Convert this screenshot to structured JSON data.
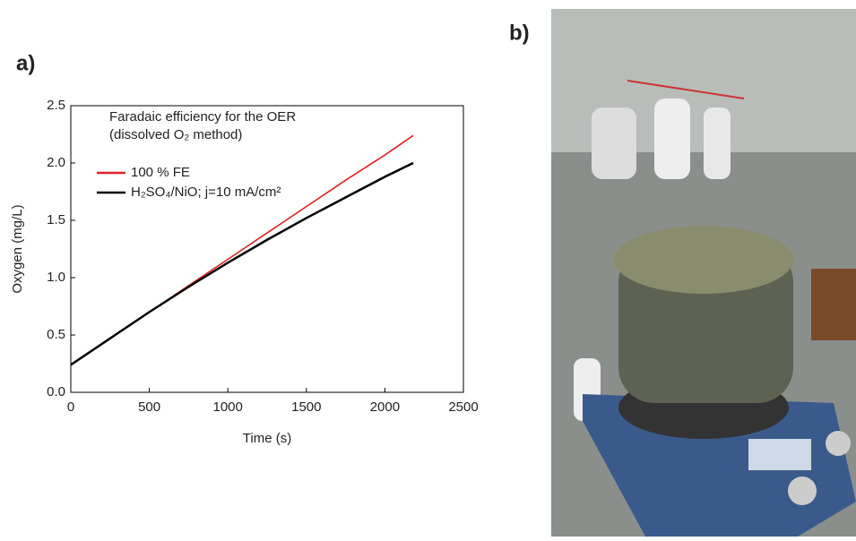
{
  "panel_labels": [
    "a)",
    "b)"
  ],
  "chart_data": {
    "type": "line",
    "annotations": [
      "Faradaic efficiency for the OER",
      "(dissolved O₂ method)"
    ],
    "x_label": "Time (s)",
    "y_label": "Oxygen (mg/L)",
    "x": [
      0,
      250,
      500,
      750,
      1000,
      1250,
      1500,
      1750,
      2000,
      2180
    ],
    "series": [
      {
        "name": "100 % FE",
        "color": "#e02020",
        "values": [
          0.24,
          0.47,
          0.7,
          0.93,
          1.16,
          1.39,
          1.62,
          1.85,
          2.07,
          2.24
        ]
      },
      {
        "name": "H₂SO₄/NiO; j=10 mA/cm²",
        "color": "#000000",
        "values": [
          0.24,
          0.47,
          0.7,
          0.92,
          1.13,
          1.33,
          1.52,
          1.7,
          1.88,
          2.0
        ]
      }
    ],
    "xlim": [
      0,
      2500
    ],
    "xticks": [
      0,
      500,
      1000,
      1500,
      2000,
      2500
    ],
    "ylim": [
      0,
      2.5
    ],
    "yticks": [
      {
        "value": 0,
        "label": "0.0"
      },
      0.5,
      {
        "value": 1,
        "label": "1.0"
      },
      1.5,
      {
        "value": 2,
        "label": "2.0"
      },
      2.5
    ]
  }
}
